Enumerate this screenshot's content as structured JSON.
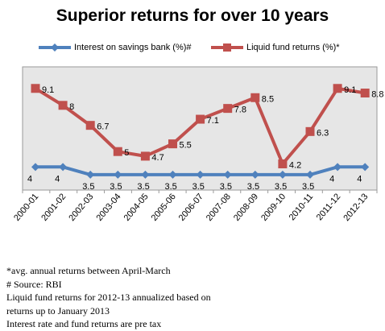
{
  "chart_data": {
    "type": "line",
    "title": "Superior returns for over 10 years",
    "categories": [
      "2000-01",
      "2001-02",
      "2002-03",
      "2003-04",
      "2004-05",
      "2005-06",
      "2006-07",
      "2007-08",
      "2008-09",
      "2009-10",
      "2010-11",
      "2011-12",
      "2012-13"
    ],
    "series": [
      {
        "name": "Interest on savings  bank (%)#",
        "color": "#4f81bd",
        "marker": "diamond",
        "values": [
          4,
          4,
          3.5,
          3.5,
          3.5,
          3.5,
          3.5,
          3.5,
          3.5,
          3.5,
          3.5,
          4,
          4
        ],
        "labels": [
          "4",
          "4",
          "3.5",
          "3.5",
          "3.5",
          "3.5",
          "3.5",
          "3.5",
          "3.5",
          "3.5",
          "3.5",
          "4",
          "4"
        ]
      },
      {
        "name": "Liquid fund returns (%)*",
        "color": "#c0504d",
        "marker": "square",
        "values": [
          9.1,
          8,
          6.7,
          5,
          4.7,
          5.5,
          7.1,
          7.8,
          8.5,
          4.2,
          6.3,
          9.1,
          8.8
        ],
        "labels": [
          "9.1",
          "8",
          "6.7",
          "5",
          "4.7",
          "5.5",
          "7.1",
          "7.8",
          "8.5",
          "4.2",
          "6.3",
          "9.1",
          "8.8"
        ]
      }
    ],
    "ylim": [
      2.5,
      10.5
    ],
    "grid": false,
    "plot_background": "#e6e6e6",
    "legend_position": "top"
  },
  "notes": [
    "*avg. annual returns between April-March",
    "# Source: RBI",
    "Liquid fund returns for 2012-13 annualized based on",
    "returns up to January 2013",
    "Interest rate and fund returns are pre tax"
  ]
}
